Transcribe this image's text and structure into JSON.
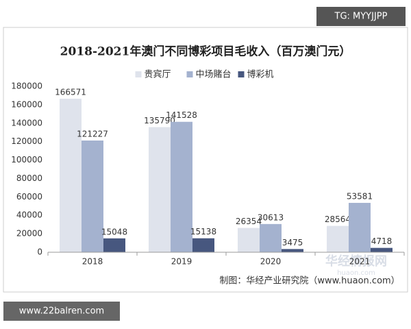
{
  "chart_data": {
    "type": "bar",
    "title": "2018-2021年澳门不同博彩项目毛收入（百万澳门元）",
    "categories": [
      "2018",
      "2019",
      "2020",
      "2021"
    ],
    "series": [
      {
        "name": "贵宾厅",
        "color": "#dfe3ec",
        "values": [
          166571,
          135790,
          26354,
          28564
        ]
      },
      {
        "name": "中场賭台",
        "color": "#a4b2cf",
        "values": [
          121227,
          141528,
          30613,
          53581
        ]
      },
      {
        "name": "博彩机",
        "color": "#47577f",
        "values": [
          15048,
          15138,
          3475,
          4718
        ]
      }
    ],
    "ylim": [
      0,
      180000
    ],
    "yticks": [
      0,
      20000,
      40000,
      60000,
      80000,
      100000,
      120000,
      140000,
      160000,
      180000
    ],
    "grid": false,
    "legend": "top",
    "source": "制图：华经产业研究院（www.huaon.com）",
    "annotations": [
      "TG: MYYJJPP",
      "www.22balren.com",
      "华经情报网",
      "huaon.com"
    ]
  }
}
